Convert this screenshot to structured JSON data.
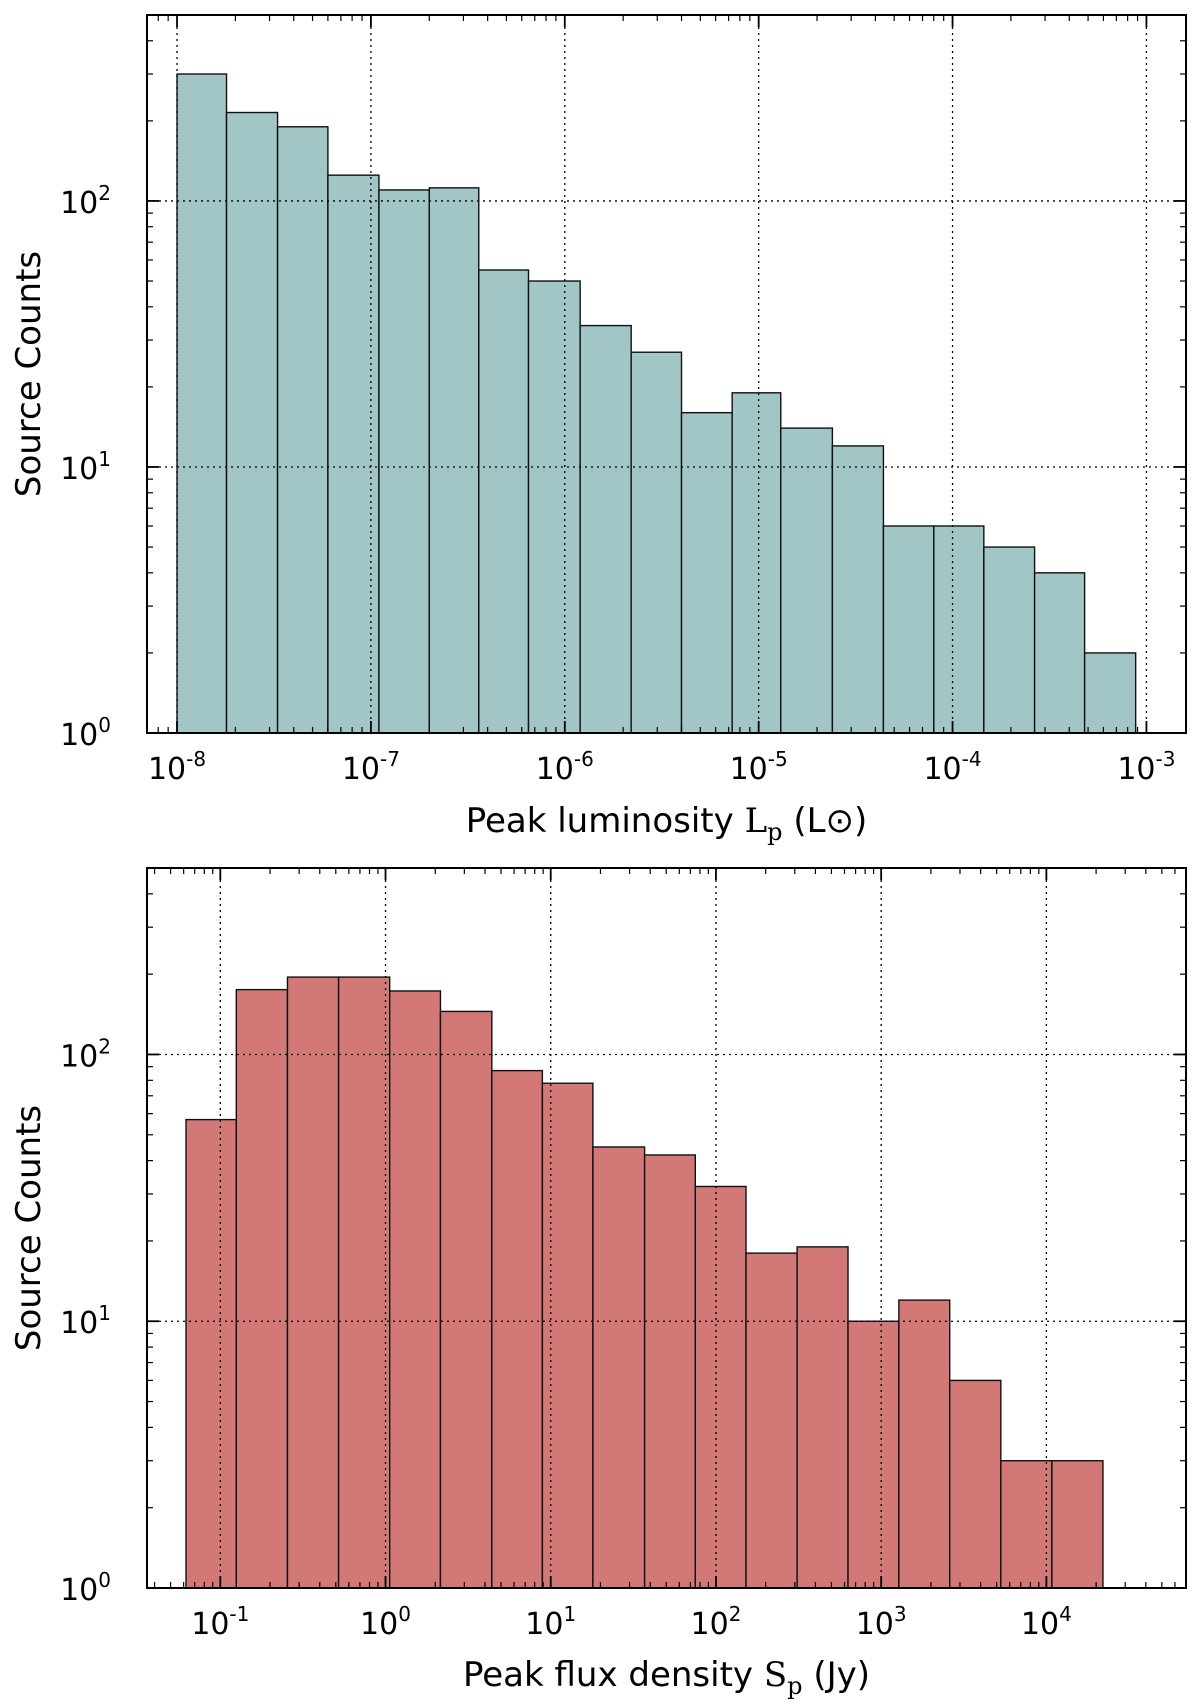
{
  "chart_data": [
    {
      "type": "bar",
      "title": "",
      "ylabel": "Source Counts",
      "xlabel_text": "Peak luminosity",
      "xlabel_symbol": "Lp",
      "xlabel_unit": "(L⊙)",
      "xscale": "log",
      "yscale": "log",
      "xlim": [
        7e-09,
        0.0016
      ],
      "ylim": [
        1,
        500
      ],
      "grid": true,
      "bar_color": "#a2c5c5",
      "xticks": [
        {
          "base": "10",
          "exp": "-8",
          "value": 1e-08
        },
        {
          "base": "10",
          "exp": "-7",
          "value": 1e-07
        },
        {
          "base": "10",
          "exp": "-6",
          "value": 1e-06
        },
        {
          "base": "10",
          "exp": "-5",
          "value": 1e-05
        },
        {
          "base": "10",
          "exp": "-4",
          "value": 0.0001
        },
        {
          "base": "10",
          "exp": "-3",
          "value": 0.001
        }
      ],
      "yticks": [
        {
          "base": "10",
          "exp": "0",
          "value": 1
        },
        {
          "base": "10",
          "exp": "1",
          "value": 10
        },
        {
          "base": "10",
          "exp": "2",
          "value": 100
        }
      ],
      "bins": [
        {
          "x0": 1e-08,
          "x1": 1.8e-08,
          "count": 300
        },
        {
          "x0": 1.8e-08,
          "x1": 3.3e-08,
          "count": 215
        },
        {
          "x0": 3.3e-08,
          "x1": 6e-08,
          "count": 190
        },
        {
          "x0": 6e-08,
          "x1": 1.1e-07,
          "count": 125
        },
        {
          "x0": 1.1e-07,
          "x1": 2e-07,
          "count": 110
        },
        {
          "x0": 2e-07,
          "x1": 3.6e-07,
          "count": 112
        },
        {
          "x0": 3.6e-07,
          "x1": 6.5e-07,
          "count": 55
        },
        {
          "x0": 6.5e-07,
          "x1": 1.2e-06,
          "count": 50
        },
        {
          "x0": 1.2e-06,
          "x1": 2.2e-06,
          "count": 34
        },
        {
          "x0": 2.2e-06,
          "x1": 4e-06,
          "count": 27
        },
        {
          "x0": 4e-06,
          "x1": 7.3e-06,
          "count": 16
        },
        {
          "x0": 7.3e-06,
          "x1": 1.3e-05,
          "count": 19
        },
        {
          "x0": 1.3e-05,
          "x1": 2.4e-05,
          "count": 14
        },
        {
          "x0": 2.4e-05,
          "x1": 4.4e-05,
          "count": 12
        },
        {
          "x0": 4.4e-05,
          "x1": 8e-05,
          "count": 6
        },
        {
          "x0": 8e-05,
          "x1": 0.000145,
          "count": 6
        },
        {
          "x0": 0.000145,
          "x1": 0.000265,
          "count": 5
        },
        {
          "x0": 0.000265,
          "x1": 0.00048,
          "count": 4
        },
        {
          "x0": 0.00048,
          "x1": 0.00088,
          "count": 2
        }
      ]
    },
    {
      "type": "bar",
      "title": "",
      "ylabel": "Source Counts",
      "xlabel_text": "Peak flux density",
      "xlabel_symbol": "Sp",
      "xlabel_unit": "(Jy)",
      "xscale": "log",
      "yscale": "log",
      "xlim": [
        0.036,
        70000
      ],
      "ylim": [
        1,
        500
      ],
      "grid": true,
      "bar_color": "#d27977",
      "xticks": [
        {
          "base": "10",
          "exp": "-1",
          "value": 0.1
        },
        {
          "base": "10",
          "exp": "0",
          "value": 1
        },
        {
          "base": "10",
          "exp": "1",
          "value": 10
        },
        {
          "base": "10",
          "exp": "2",
          "value": 100
        },
        {
          "base": "10",
          "exp": "3",
          "value": 1000
        },
        {
          "base": "10",
          "exp": "4",
          "value": 10000
        }
      ],
      "yticks": [
        {
          "base": "10",
          "exp": "0",
          "value": 1
        },
        {
          "base": "10",
          "exp": "1",
          "value": 10
        },
        {
          "base": "10",
          "exp": "2",
          "value": 100
        }
      ],
      "bins": [
        {
          "x0": 0.062,
          "x1": 0.125,
          "count": 57
        },
        {
          "x0": 0.125,
          "x1": 0.255,
          "count": 175
        },
        {
          "x0": 0.255,
          "x1": 0.52,
          "count": 195
        },
        {
          "x0": 0.52,
          "x1": 1.06,
          "count": 195
        },
        {
          "x0": 1.06,
          "x1": 2.15,
          "count": 173
        },
        {
          "x0": 2.15,
          "x1": 4.4,
          "count": 145
        },
        {
          "x0": 4.4,
          "x1": 8.9,
          "count": 87
        },
        {
          "x0": 8.9,
          "x1": 18.0,
          "count": 78
        },
        {
          "x0": 18.0,
          "x1": 37.0,
          "count": 45
        },
        {
          "x0": 37.0,
          "x1": 75.0,
          "count": 42
        },
        {
          "x0": 75.0,
          "x1": 152.0,
          "count": 32
        },
        {
          "x0": 152.0,
          "x1": 310.0,
          "count": 18
        },
        {
          "x0": 310.0,
          "x1": 630.0,
          "count": 19
        },
        {
          "x0": 630.0,
          "x1": 1280.0,
          "count": 10
        },
        {
          "x0": 1280.0,
          "x1": 2600.0,
          "count": 12
        },
        {
          "x0": 2600.0,
          "x1": 5300.0,
          "count": 6
        },
        {
          "x0": 5300.0,
          "x1": 10800.0,
          "count": 3
        },
        {
          "x0": 10800.0,
          "x1": 22000.0,
          "count": 3
        }
      ]
    }
  ]
}
